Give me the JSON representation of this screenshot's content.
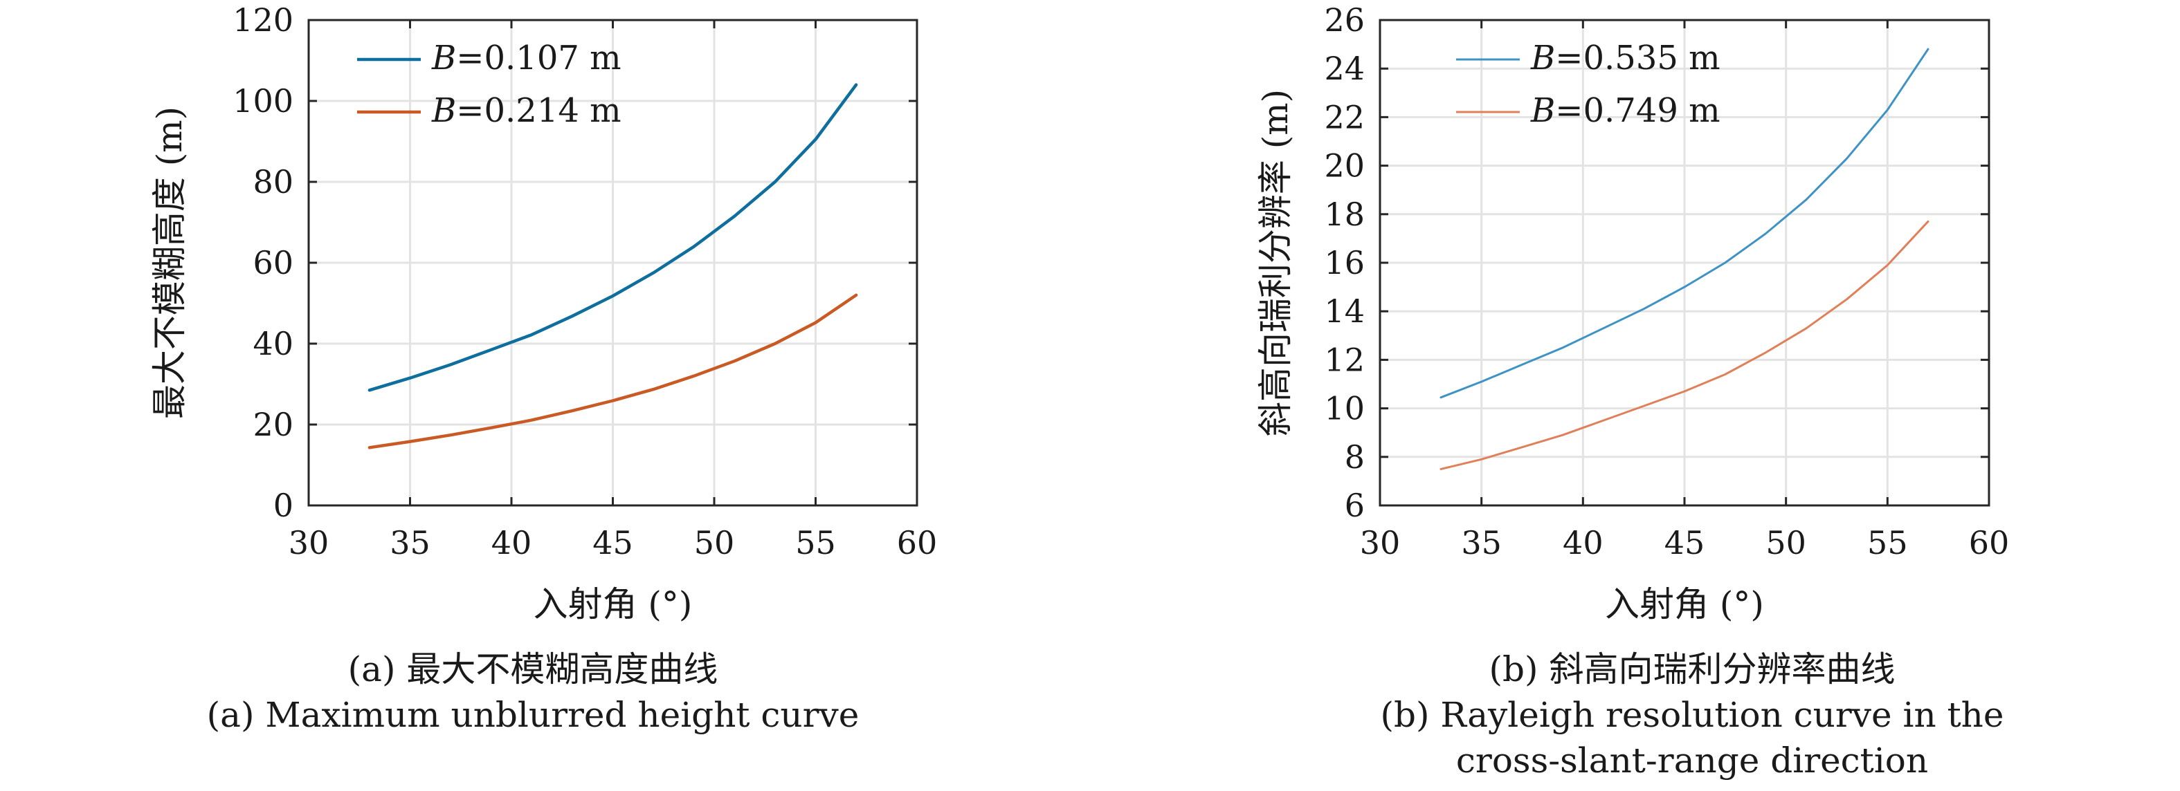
{
  "chart_data": [
    {
      "id": "a",
      "type": "line",
      "xlabel": "入射角 (°)",
      "ylabel": "最大不模糊高度 (m)",
      "xlim": [
        30,
        60
      ],
      "ylim": [
        0,
        120
      ],
      "xticks": [
        30,
        35,
        40,
        45,
        50,
        55,
        60
      ],
      "yticks": [
        0,
        20,
        40,
        60,
        80,
        100,
        120
      ],
      "grid": true,
      "legend": "top-left",
      "series": [
        {
          "name": "B=0.107 m",
          "legend_var": "B",
          "legend_value": "=0.107 m",
          "color": "#0E6E9E",
          "x": [
            33,
            35,
            37,
            39,
            41,
            43,
            45,
            47,
            49,
            51,
            53,
            55,
            57
          ],
          "y": [
            28.5,
            31.5,
            34.8,
            38.5,
            42.2,
            46.8,
            51.8,
            57.5,
            64.0,
            71.5,
            80.0,
            90.5,
            104.0
          ]
        },
        {
          "name": "B=0.214 m",
          "legend_var": "B",
          "legend_value": "=0.214 m",
          "color": "#C95A24",
          "x": [
            33,
            35,
            37,
            39,
            41,
            43,
            45,
            47,
            49,
            51,
            53,
            55,
            57
          ],
          "y": [
            14.3,
            15.8,
            17.4,
            19.2,
            21.1,
            23.4,
            25.9,
            28.7,
            32.0,
            35.7,
            40.0,
            45.2,
            52.0
          ]
        }
      ]
    },
    {
      "id": "b",
      "type": "line",
      "xlabel": "入射角 (°)",
      "ylabel": "斜高向瑞利分辨率 (m)",
      "xlim": [
        30,
        60
      ],
      "ylim": [
        6,
        26
      ],
      "xticks": [
        30,
        35,
        40,
        45,
        50,
        55,
        60
      ],
      "yticks": [
        6,
        8,
        10,
        12,
        14,
        16,
        18,
        20,
        22,
        24,
        26
      ],
      "grid": true,
      "legend": "top-left",
      "series": [
        {
          "name": "B=0.535 m",
          "legend_var": "B",
          "legend_value": "=0.535 m",
          "color": "#3F93C4",
          "x": [
            33,
            35,
            37,
            39,
            41,
            43,
            45,
            47,
            49,
            51,
            53,
            55,
            57
          ],
          "y": [
            10.45,
            11.1,
            11.8,
            12.5,
            13.3,
            14.1,
            15.0,
            16.0,
            17.2,
            18.6,
            20.3,
            22.3,
            24.8
          ]
        },
        {
          "name": "B=0.749 m",
          "legend_var": "B",
          "legend_value": "=0.749 m",
          "color": "#E0805A",
          "x": [
            33,
            35,
            37,
            39,
            41,
            43,
            45,
            47,
            49,
            51,
            53,
            55,
            57
          ],
          "y": [
            7.5,
            7.9,
            8.4,
            8.9,
            9.5,
            10.1,
            10.7,
            11.4,
            12.3,
            13.3,
            14.5,
            15.9,
            17.7
          ]
        }
      ]
    }
  ],
  "captions": {
    "a": {
      "zh": "(a) 最大不模糊高度曲线",
      "en": "(a) Maximum unblurred height curve"
    },
    "b": {
      "zh": "(b) 斜高向瑞利分辨率曲线",
      "en_line1": "(b) Rayleigh resolution curve in the",
      "en_line2": "cross-slant-range direction"
    }
  }
}
